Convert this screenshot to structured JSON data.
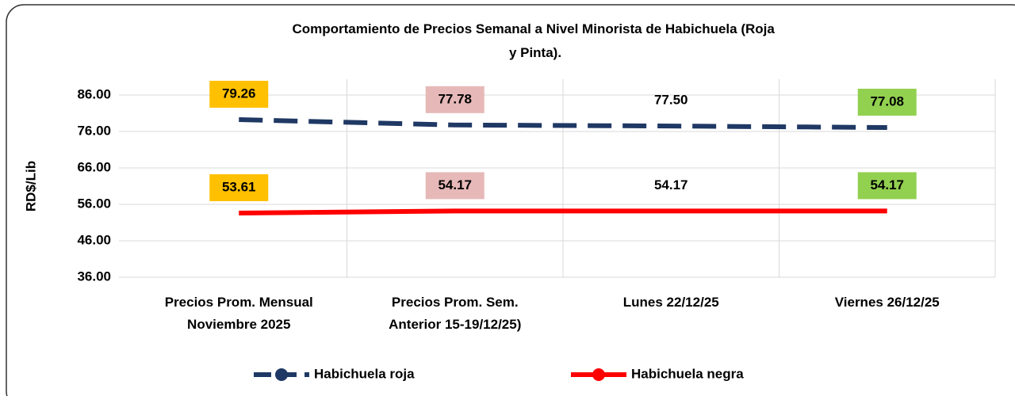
{
  "chart_data": {
    "type": "line",
    "title": "Comportamiento de Precios Semanal a Nivel Minorista de Habichuela (Roja  y Pinta).",
    "y_label": "RD$/Lib",
    "categories": [
      "Precios Prom. Mensual\nNoviembre 2025",
      "Precios Prom. Sem.\nAnterior  15-19/12/25)",
      "Lunes     22/12/25",
      "Viernes 26/12/25"
    ],
    "series": [
      {
        "name": "Habichuela roja",
        "color": "#1f3864",
        "dash": true,
        "values": [
          79.26,
          77.78,
          77.5,
          77.08
        ],
        "value_labels": [
          "79.26",
          "77.78",
          "77.50",
          "77.08"
        ],
        "label_colors": [
          "#ffc000",
          "#e6b9b8",
          null,
          "#92d050"
        ]
      },
      {
        "name": "Habichuela negra",
        "color": "#ff0000",
        "dash": false,
        "values": [
          53.61,
          54.17,
          54.17,
          54.17
        ],
        "value_labels": [
          "53.61",
          "54.17",
          "54.17",
          "54.17"
        ],
        "label_colors": [
          "#ffc000",
          "#e6b9b8",
          null,
          "#92d050"
        ]
      }
    ],
    "ylim": [
      36,
      86
    ],
    "yticks": [
      {
        "value": 36,
        "label": "36.00"
      },
      {
        "value": 46,
        "label": "46.00"
      },
      {
        "value": 56,
        "label": "56.00"
      },
      {
        "value": 66,
        "label": "66.00"
      },
      {
        "value": 76,
        "label": "76.00"
      },
      {
        "value": 86,
        "label": "86.00"
      }
    ],
    "grid": true,
    "legend": "bottom"
  }
}
